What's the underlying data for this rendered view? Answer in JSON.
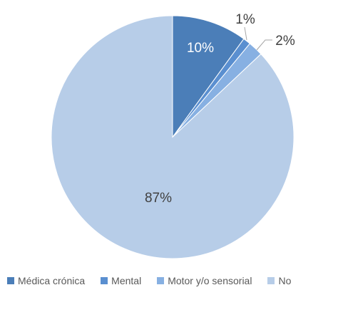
{
  "chart_data": {
    "type": "pie",
    "categories": [
      "Médica crónica",
      "Mental",
      "Motor y/o sensorial",
      "No"
    ],
    "values": [
      10,
      1,
      2,
      87
    ],
    "labels": [
      "10%",
      "1%",
      "2%",
      "87%"
    ],
    "colors": [
      "#4b7eb8",
      "#5a8fd0",
      "#87b0e2",
      "#b7cde8"
    ],
    "legend_position": "bottom"
  }
}
